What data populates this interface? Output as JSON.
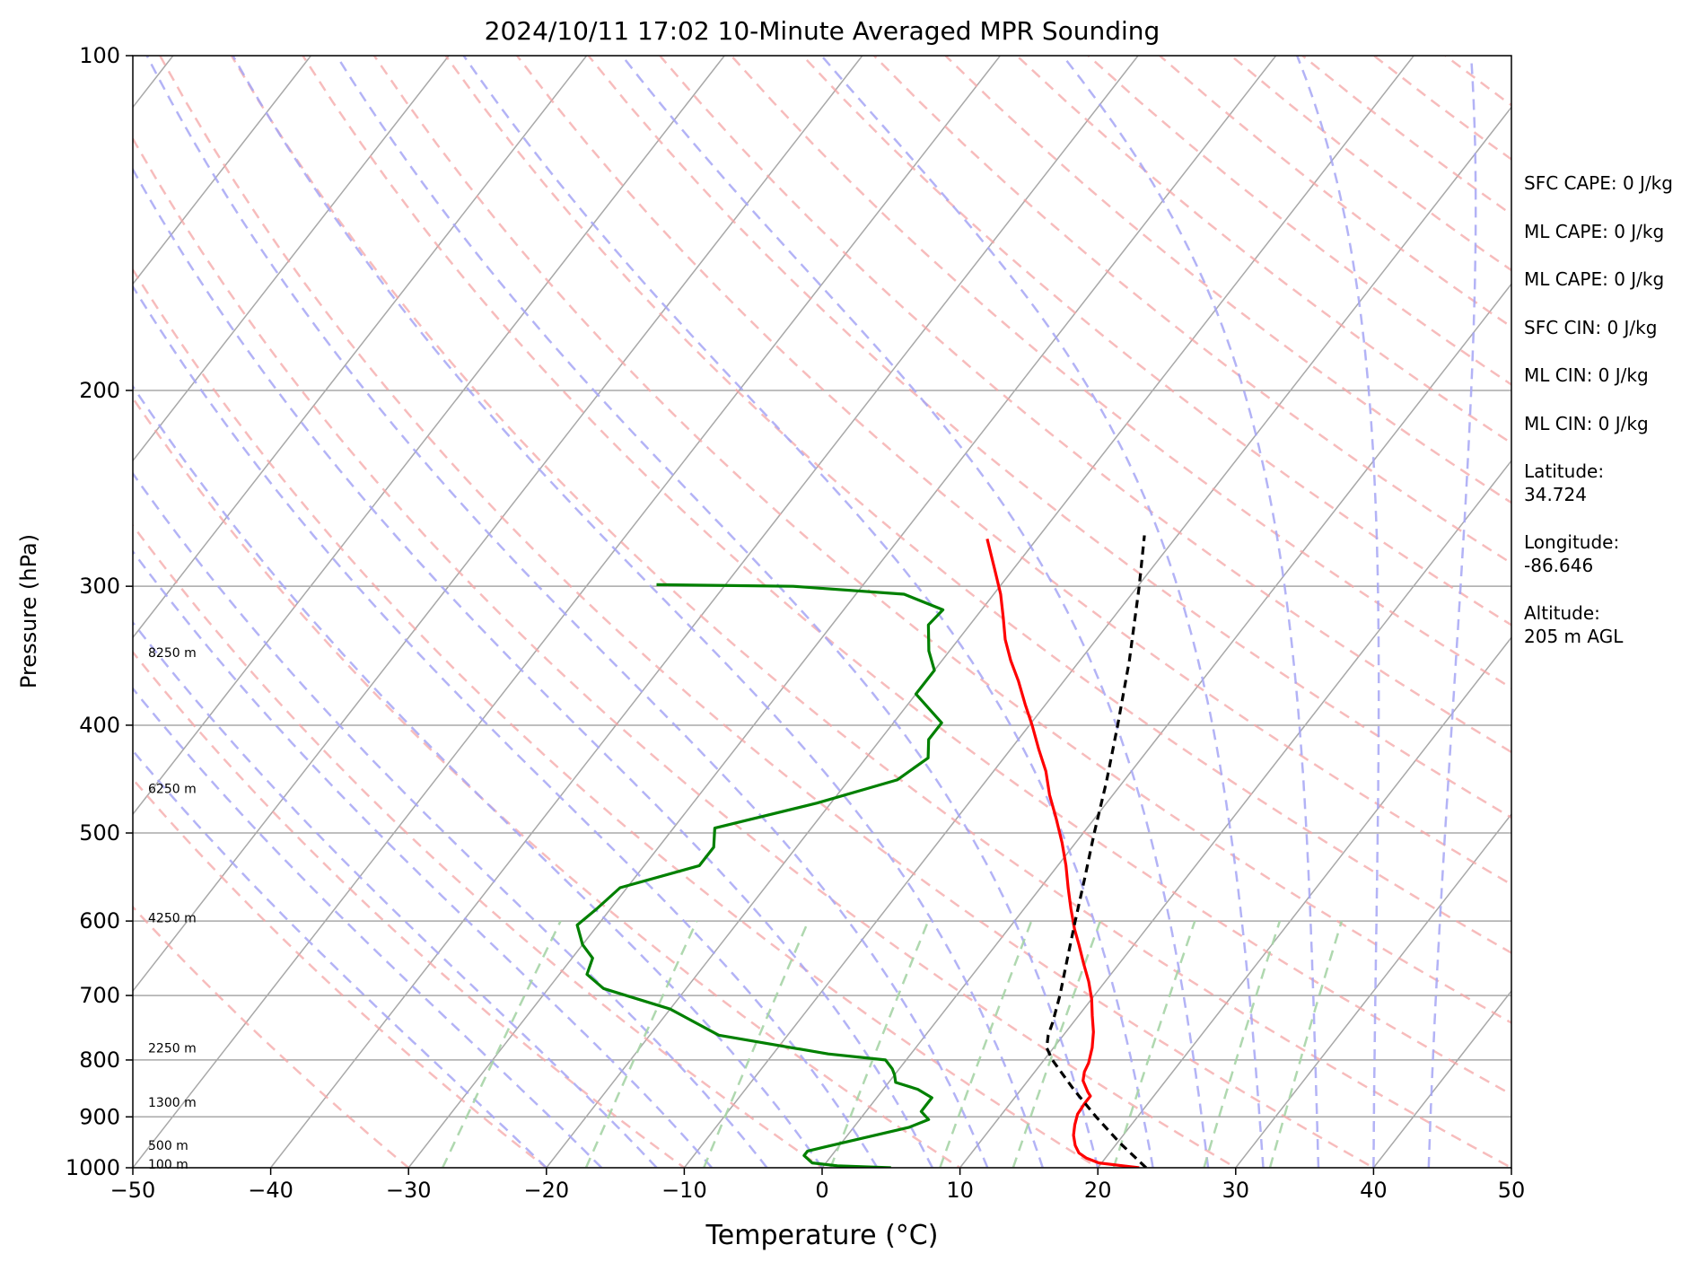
{
  "chart_data": {
    "type": "line",
    "title": "2024/10/11 17:02 10-Minute Averaged MPR Sounding",
    "xlabel": "Temperature (°C)",
    "ylabel": "Pressure (hPa)",
    "xlim": [
      -50,
      50
    ],
    "ylim": [
      1000,
      100
    ],
    "y_scale": "log",
    "skew_t": true,
    "grid": true,
    "x_ticks": [
      -50,
      -40,
      -30,
      -20,
      -10,
      0,
      10,
      20,
      30,
      40,
      50
    ],
    "x_tick_labels": [
      "−50",
      "−40",
      "−30",
      "−20",
      "−10",
      "0",
      "10",
      "20",
      "30",
      "40",
      "50"
    ],
    "y_ticks": [
      100,
      200,
      300,
      400,
      500,
      600,
      700,
      800,
      900,
      1000
    ],
    "y_tick_labels": [
      "100",
      "200",
      "300",
      "400",
      "500",
      "600",
      "700",
      "800",
      "900",
      "1000"
    ],
    "background_lines": {
      "isotherm_color": "#a8a8a8",
      "dry_adiabat_color": "#f4a6a6",
      "moist_adiabat_color": "#a6a6f4",
      "mixing_ratio_color": "#a6d4a6"
    },
    "height_labels": [
      {
        "label": "100 m",
        "p": 993
      },
      {
        "label": "500 m",
        "p": 955
      },
      {
        "label": "1300 m",
        "p": 873
      },
      {
        "label": "2250 m",
        "p": 780
      },
      {
        "label": "4250 m",
        "p": 596
      },
      {
        "label": "6250 m",
        "p": 456
      },
      {
        "label": "8250 m",
        "p": 344
      }
    ],
    "series": [
      {
        "role": "temperature",
        "color": "#ff0000",
        "points": [
          [
            1000,
            23.0
          ],
          [
            995,
            21.4
          ],
          [
            990,
            19.8
          ],
          [
            980,
            18.6
          ],
          [
            970,
            17.8
          ],
          [
            955,
            17.1
          ],
          [
            935,
            16.4
          ],
          [
            915,
            15.9
          ],
          [
            895,
            15.5
          ],
          [
            875,
            15.4
          ],
          [
            862,
            15.4
          ],
          [
            855,
            15.0
          ],
          [
            845,
            14.5
          ],
          [
            835,
            14.0
          ],
          [
            820,
            13.6
          ],
          [
            805,
            13.4
          ],
          [
            780,
            12.8
          ],
          [
            755,
            12.0
          ],
          [
            730,
            11.0
          ],
          [
            705,
            10.0
          ],
          [
            680,
            8.8
          ],
          [
            655,
            7.4
          ],
          [
            630,
            6.0
          ],
          [
            610,
            4.8
          ],
          [
            585,
            3.4
          ],
          [
            560,
            2.0
          ],
          [
            535,
            0.6
          ],
          [
            510,
            -1.0
          ],
          [
            485,
            -2.8
          ],
          [
            462,
            -4.6
          ],
          [
            440,
            -6.2
          ],
          [
            420,
            -8.0
          ],
          [
            400,
            -9.8
          ],
          [
            383,
            -11.5
          ],
          [
            365,
            -13.3
          ],
          [
            350,
            -15.0
          ],
          [
            335,
            -16.6
          ],
          [
            320,
            -18.0
          ],
          [
            305,
            -19.5
          ],
          [
            290,
            -21.3
          ],
          [
            272,
            -23.6
          ]
        ]
      },
      {
        "role": "dewpoint",
        "color": "#008000",
        "points": [
          [
            1000,
            5.0
          ],
          [
            996,
            1.0
          ],
          [
            990,
            -1.0
          ],
          [
            975,
            -2.0
          ],
          [
            966,
            -2.0
          ],
          [
            958,
            -1.0
          ],
          [
            935,
            2.0
          ],
          [
            920,
            4.0
          ],
          [
            905,
            5.0
          ],
          [
            890,
            4.0
          ],
          [
            878,
            4.0
          ],
          [
            865,
            4.0
          ],
          [
            850,
            2.5
          ],
          [
            838,
            0.5
          ],
          [
            825,
            0.0
          ],
          [
            815,
            -0.5
          ],
          [
            800,
            -1.5
          ],
          [
            790,
            -6.0
          ],
          [
            760,
            -15.0
          ],
          [
            720,
            -20.0
          ],
          [
            690,
            -26.0
          ],
          [
            670,
            -28.0
          ],
          [
            648,
            -28.5
          ],
          [
            630,
            -30.0
          ],
          [
            605,
            -31.5
          ],
          [
            585,
            -31.0
          ],
          [
            560,
            -30.5
          ],
          [
            535,
            -26.0
          ],
          [
            515,
            -26.0
          ],
          [
            495,
            -27.0
          ],
          [
            470,
            -21.0
          ],
          [
            448,
            -16.5
          ],
          [
            428,
            -15.5
          ],
          [
            412,
            -16.5
          ],
          [
            398,
            -16.5
          ],
          [
            375,
            -20.0
          ],
          [
            357,
            -20.0
          ],
          [
            343,
            -21.5
          ],
          [
            325,
            -23.0
          ],
          [
            315,
            -22.8
          ],
          [
            305,
            -26.5
          ],
          [
            300,
            -35.0
          ],
          [
            299,
            -45.0
          ]
        ]
      },
      {
        "role": "parcel",
        "color": "#000000",
        "dashed": true,
        "points": [
          [
            1000,
            23.5
          ],
          [
            950,
            20.2
          ],
          [
            900,
            17.0
          ],
          [
            850,
            13.8
          ],
          [
            800,
            10.6
          ],
          [
            780,
            9.5
          ],
          [
            760,
            8.9
          ],
          [
            740,
            8.5
          ],
          [
            700,
            7.5
          ],
          [
            650,
            6.0
          ],
          [
            600,
            4.4
          ],
          [
            550,
            2.7
          ],
          [
            500,
            0.8
          ],
          [
            450,
            -1.2
          ],
          [
            400,
            -3.6
          ],
          [
            350,
            -6.4
          ],
          [
            300,
            -9.9
          ],
          [
            270,
            -12.4
          ]
        ]
      }
    ]
  },
  "info_panel": [
    "SFC CAPE: 0 J/kg",
    "ML CAPE: 0 J/kg",
    "ML CAPE: 0 J/kg",
    "SFC CIN: 0 J/kg",
    "ML CIN: 0 J/kg",
    "ML CIN: 0 J/kg",
    "Latitude:",
    "34.724",
    "Longitude:",
    "-86.646",
    "Altitude:",
    "205 m AGL"
  ]
}
